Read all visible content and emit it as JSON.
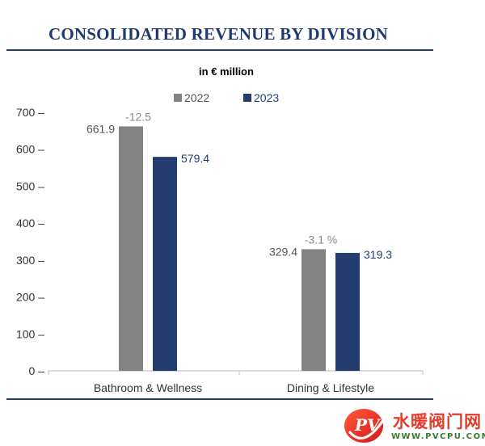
{
  "page": {
    "title": "CONSOLIDATED REVENUE BY DIVISION"
  },
  "chart_data": {
    "type": "bar",
    "subtitle": "in € million",
    "categories": [
      "Bathroom & Wellness",
      "Dining & Lifestyle"
    ],
    "series": [
      {
        "name": "2022",
        "values": [
          661.9,
          329.4
        ],
        "labels": [
          "661.9",
          "329.4"
        ],
        "color": "#838383"
      },
      {
        "name": "2023",
        "values": [
          579.4,
          319.3
        ],
        "labels": [
          "579.4",
          "319.3"
        ],
        "color": "#243d6e"
      }
    ],
    "change_labels": [
      "-12.5",
      "-3.1 %"
    ],
    "y_ticks": [
      "0 –",
      "100 –",
      "200 –",
      "300 –",
      "400 –",
      "500 –",
      "600 –",
      "700 –"
    ],
    "ylim": [
      0,
      700
    ],
    "grid": false,
    "legend_position": "top"
  },
  "watermark": {
    "brand": "水暖阀门网",
    "url": "WWW.PVCPU.COM",
    "logo_text": "PV"
  },
  "colors": {
    "title": "#1f3a6e",
    "y2022": "#838383",
    "y2023": "#243d6e",
    "axis": "#bdbdbd",
    "change_label": "#8a8a8a",
    "watermark_red": "#e63a2c",
    "watermark_green": "#3a7a2c"
  }
}
